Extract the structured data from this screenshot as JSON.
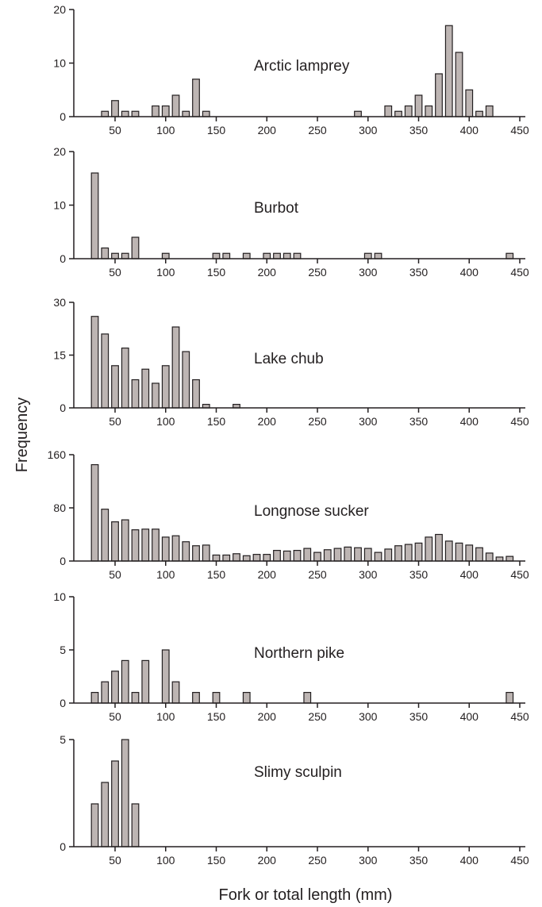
{
  "figure": {
    "ylabel": "Frequency",
    "xlabel": "Fork or total length (mm)"
  },
  "colors": {
    "bar_fill": "#bdb5b3",
    "bar_stroke": "#231f20",
    "axis": "#231f20"
  },
  "chart_data": [
    {
      "type": "bar",
      "title": "Arctic lamprey",
      "x": [
        40,
        50,
        60,
        70,
        90,
        100,
        110,
        120,
        130,
        140,
        290,
        320,
        330,
        340,
        350,
        360,
        370,
        380,
        390,
        400,
        410,
        420
      ],
      "values": [
        1,
        3,
        1,
        1,
        2,
        2,
        4,
        1,
        7,
        1,
        1,
        2,
        1,
        2,
        4,
        2,
        8,
        17,
        12,
        5,
        1,
        2
      ],
      "ylim": [
        0,
        20
      ],
      "yticks": [
        0,
        10,
        20
      ],
      "xticks": [
        50,
        100,
        150,
        200,
        250,
        300,
        350,
        400,
        450
      ]
    },
    {
      "type": "bar",
      "title": "Burbot",
      "x": [
        30,
        40,
        50,
        60,
        70,
        100,
        150,
        160,
        180,
        200,
        210,
        220,
        230,
        300,
        310,
        440
      ],
      "values": [
        16,
        2,
        1,
        1,
        4,
        1,
        1,
        1,
        1,
        1,
        1,
        1,
        1,
        1,
        1,
        1
      ],
      "ylim": [
        0,
        20
      ],
      "yticks": [
        0,
        10,
        20
      ],
      "xticks": [
        50,
        100,
        150,
        200,
        250,
        300,
        350,
        400,
        450
      ]
    },
    {
      "type": "bar",
      "title": "Lake chub",
      "x": [
        30,
        40,
        50,
        60,
        70,
        80,
        90,
        100,
        110,
        120,
        130,
        140,
        170
      ],
      "values": [
        26,
        21,
        12,
        17,
        8,
        11,
        7,
        12,
        23,
        16,
        8,
        1,
        1
      ],
      "ylim": [
        0,
        30
      ],
      "yticks": [
        0,
        15,
        30
      ],
      "xticks": [
        50,
        100,
        150,
        200,
        250,
        300,
        350,
        400,
        450
      ]
    },
    {
      "type": "bar",
      "title": "Longnose sucker",
      "x": [
        30,
        40,
        50,
        60,
        70,
        80,
        90,
        100,
        110,
        120,
        130,
        140,
        150,
        160,
        170,
        180,
        190,
        200,
        210,
        220,
        230,
        240,
        250,
        260,
        270,
        280,
        290,
        300,
        310,
        320,
        330,
        340,
        350,
        360,
        370,
        380,
        390,
        400,
        410,
        420,
        430,
        440
      ],
      "values": [
        145,
        78,
        59,
        62,
        47,
        48,
        48,
        36,
        38,
        29,
        23,
        24,
        9,
        9,
        11,
        8,
        10,
        10,
        16,
        15,
        16,
        19,
        13,
        17,
        19,
        21,
        20,
        19,
        13,
        18,
        23,
        25,
        27,
        36,
        40,
        30,
        27,
        24,
        20,
        12,
        6,
        7
      ],
      "ylim": [
        0,
        160
      ],
      "yticks": [
        0,
        80,
        160
      ],
      "xticks": [
        50,
        100,
        150,
        200,
        250,
        300,
        350,
        400,
        450
      ]
    },
    {
      "type": "bar",
      "title": "Northern pike",
      "x": [
        30,
        40,
        50,
        60,
        70,
        80,
        100,
        110,
        130,
        150,
        180,
        240,
        440
      ],
      "values": [
        1,
        2,
        3,
        4,
        1,
        4,
        5,
        2,
        1,
        1,
        1,
        1,
        1
      ],
      "ylim": [
        0,
        10
      ],
      "yticks": [
        0,
        5,
        10
      ],
      "xticks": [
        50,
        100,
        150,
        200,
        250,
        300,
        350,
        400,
        450
      ]
    },
    {
      "type": "bar",
      "title": "Slimy sculpin",
      "x": [
        30,
        40,
        50,
        60,
        70
      ],
      "values": [
        2,
        3,
        4,
        5,
        2
      ],
      "ylim": [
        0,
        5
      ],
      "yticks": [
        0,
        5
      ],
      "xticks": [
        50,
        100,
        150,
        200,
        250,
        300,
        350,
        400,
        450
      ]
    }
  ]
}
